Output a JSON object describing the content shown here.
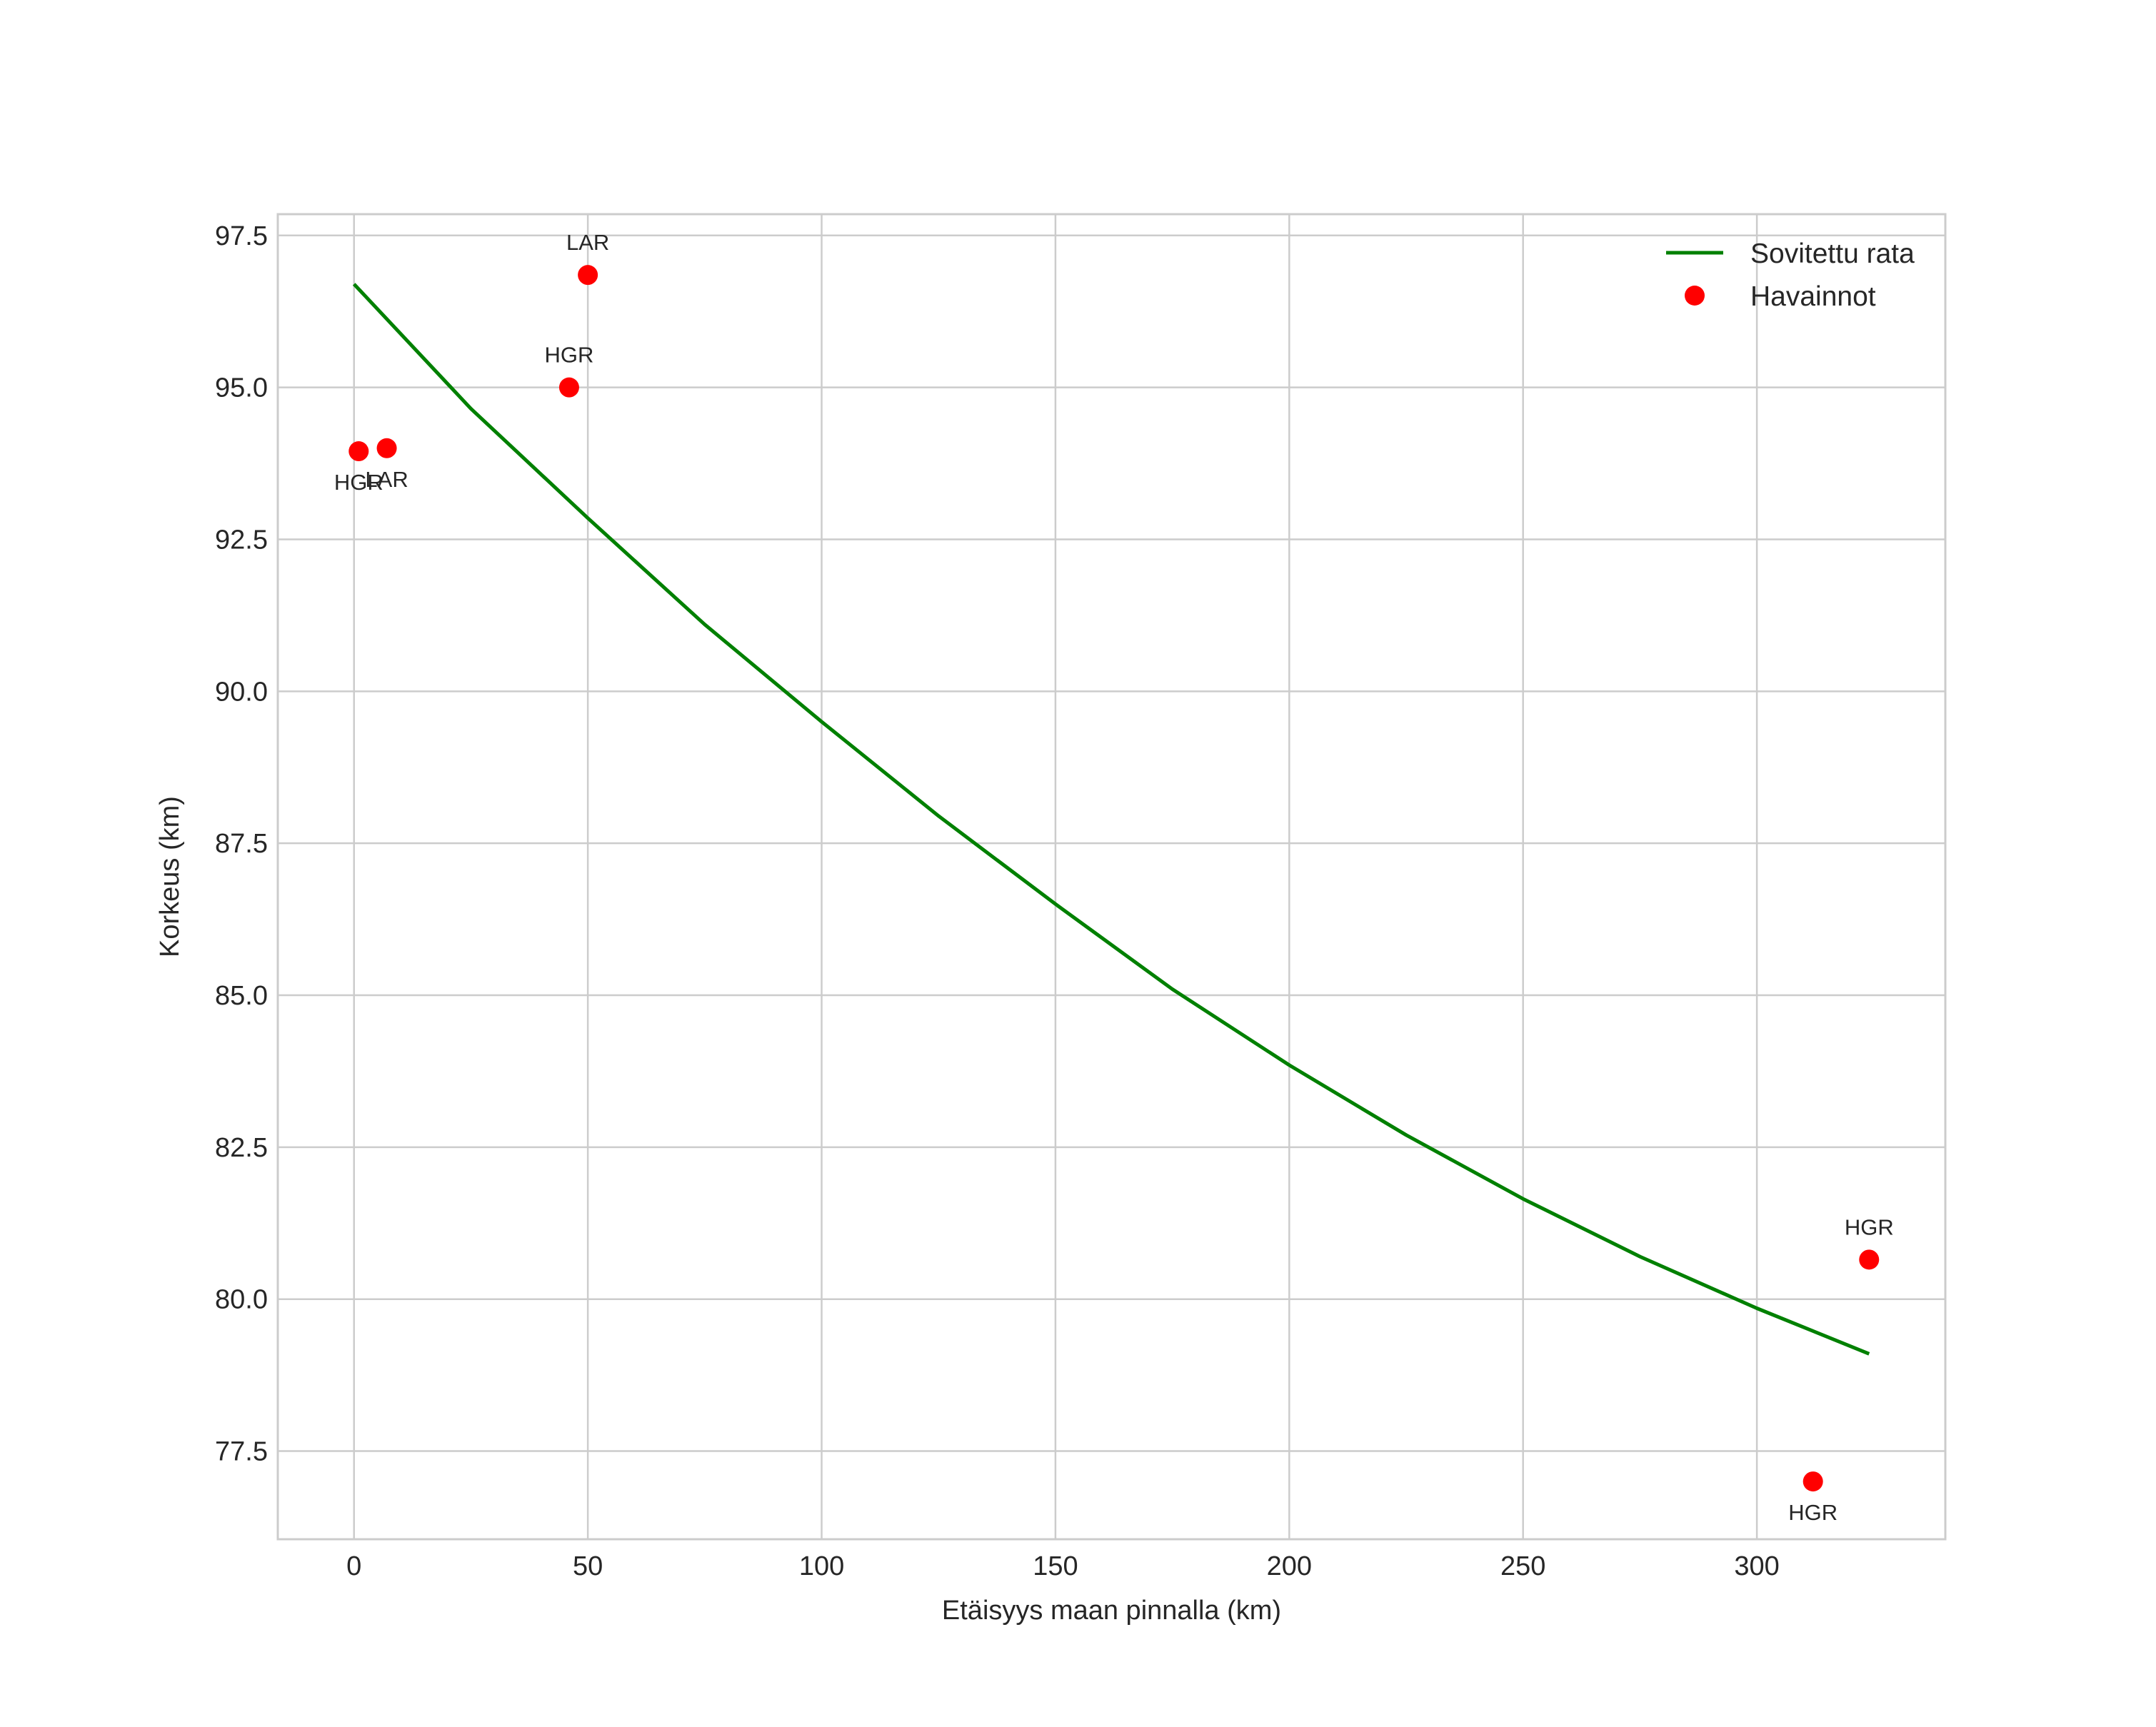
{
  "chart_data": {
    "type": "line",
    "title": "",
    "xlabel": "Etäisyys maan pinnalla (km)",
    "ylabel": "Korkeus (km)",
    "xlim": [
      -16.3,
      340.3
    ],
    "ylim": [
      76.05,
      97.85
    ],
    "xticks": [
      0,
      50,
      100,
      150,
      200,
      250,
      300
    ],
    "xtick_labels": [
      "0",
      "50",
      "100",
      "150",
      "200",
      "250",
      "300"
    ],
    "yticks": [
      77.5,
      80.0,
      82.5,
      85.0,
      87.5,
      90.0,
      92.5,
      95.0,
      97.5
    ],
    "ytick_labels": [
      "77.5",
      "80.0",
      "82.5",
      "85.0",
      "87.5",
      "90.0",
      "92.5",
      "95.0",
      "97.5"
    ],
    "grid": true,
    "legend": "top-right",
    "series": [
      {
        "name": "Sovitettu rata",
        "kind": "line",
        "color": "#008000",
        "x": [
          0,
          25,
          50,
          75,
          100,
          125,
          150,
          175,
          200,
          225,
          250,
          275,
          300,
          324
        ],
        "y": [
          96.7,
          94.65,
          92.85,
          91.1,
          89.5,
          87.95,
          86.5,
          85.1,
          83.85,
          82.7,
          81.65,
          80.7,
          79.85,
          79.1
        ]
      },
      {
        "name": "Havainnot",
        "kind": "scatter",
        "color": "#ff0000",
        "points": [
          {
            "x": 1,
            "y": 93.95,
            "label": "HGR",
            "label_pos": "below"
          },
          {
            "x": 7,
            "y": 94.0,
            "label": "LAR",
            "label_pos": "below"
          },
          {
            "x": 46,
            "y": 95.0,
            "label": "HGR",
            "label_pos": "above"
          },
          {
            "x": 50,
            "y": 96.85,
            "label": "LAR",
            "label_pos": "above"
          },
          {
            "x": 312,
            "y": 77.0,
            "label": "HGR",
            "label_pos": "below"
          },
          {
            "x": 324,
            "y": 80.65,
            "label": "HGR",
            "label_pos": "above"
          }
        ]
      }
    ]
  }
}
